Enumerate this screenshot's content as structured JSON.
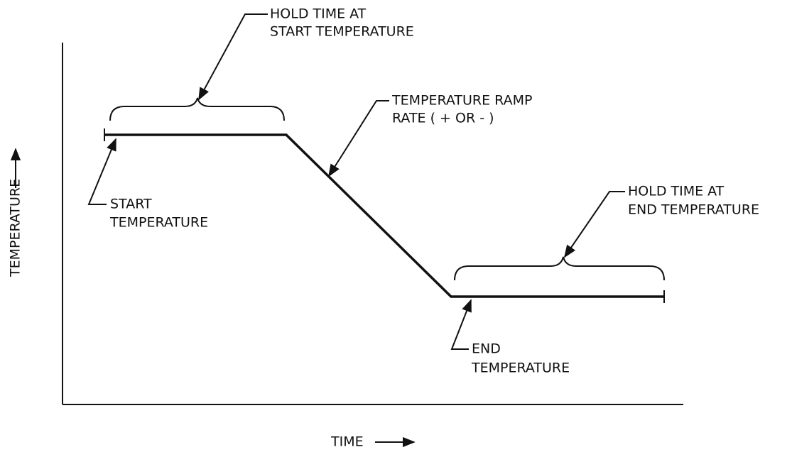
{
  "axes": {
    "y_label": "TEMPERATURE",
    "x_label": "TIME"
  },
  "annotations": [
    {
      "lines": [
        "HOLD TIME AT",
        "START TEMPERATURE"
      ]
    },
    {
      "lines": [
        "TEMPERATURE RAMP",
        "RATE ( + OR - )"
      ]
    },
    {
      "lines": [
        "START",
        "TEMPERATURE"
      ]
    },
    {
      "lines": [
        "HOLD TIME AT",
        "END TEMPERATURE"
      ]
    },
    {
      "lines": [
        "END",
        "TEMPERATURE"
      ]
    }
  ]
}
